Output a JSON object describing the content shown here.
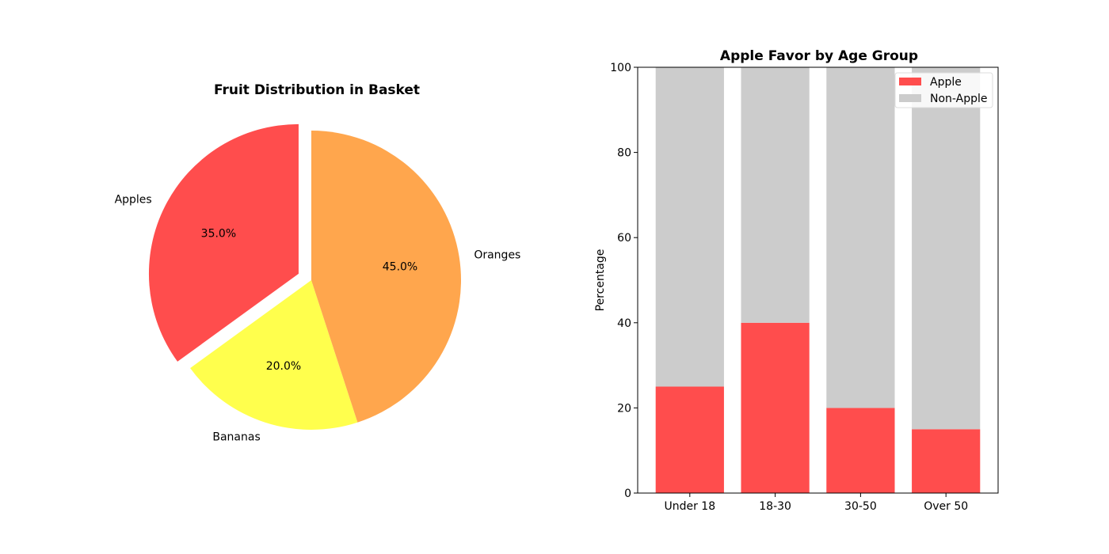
{
  "chart_data": [
    {
      "type": "pie",
      "title": "Fruit Distribution in Basket",
      "categories": [
        "Apples",
        "Bananas",
        "Oranges"
      ],
      "values": [
        35.0,
        20.0,
        45.0
      ],
      "value_labels": [
        "35.0%",
        "20.0%",
        "45.0%"
      ],
      "colors": [
        "#ff4d4d",
        "#ffff4d",
        "#ffa64d"
      ],
      "explode": [
        true,
        false,
        false
      ]
    },
    {
      "type": "bar",
      "stacked": true,
      "title": "Apple Favor by Age Group",
      "xlabel": "",
      "ylabel": "Percentage",
      "categories": [
        "Under 18",
        "18-30",
        "30-50",
        "Over 50"
      ],
      "series": [
        {
          "name": "Apple",
          "values": [
            25,
            40,
            20,
            15
          ],
          "color": "#ff4d4d"
        },
        {
          "name": "Non-Apple",
          "values": [
            75,
            60,
            80,
            85
          ],
          "color": "#cccccc"
        }
      ],
      "ylim": [
        0,
        100
      ],
      "yticks": [
        0,
        20,
        40,
        60,
        80,
        100
      ],
      "legend": "top-right",
      "grid": false
    }
  ]
}
